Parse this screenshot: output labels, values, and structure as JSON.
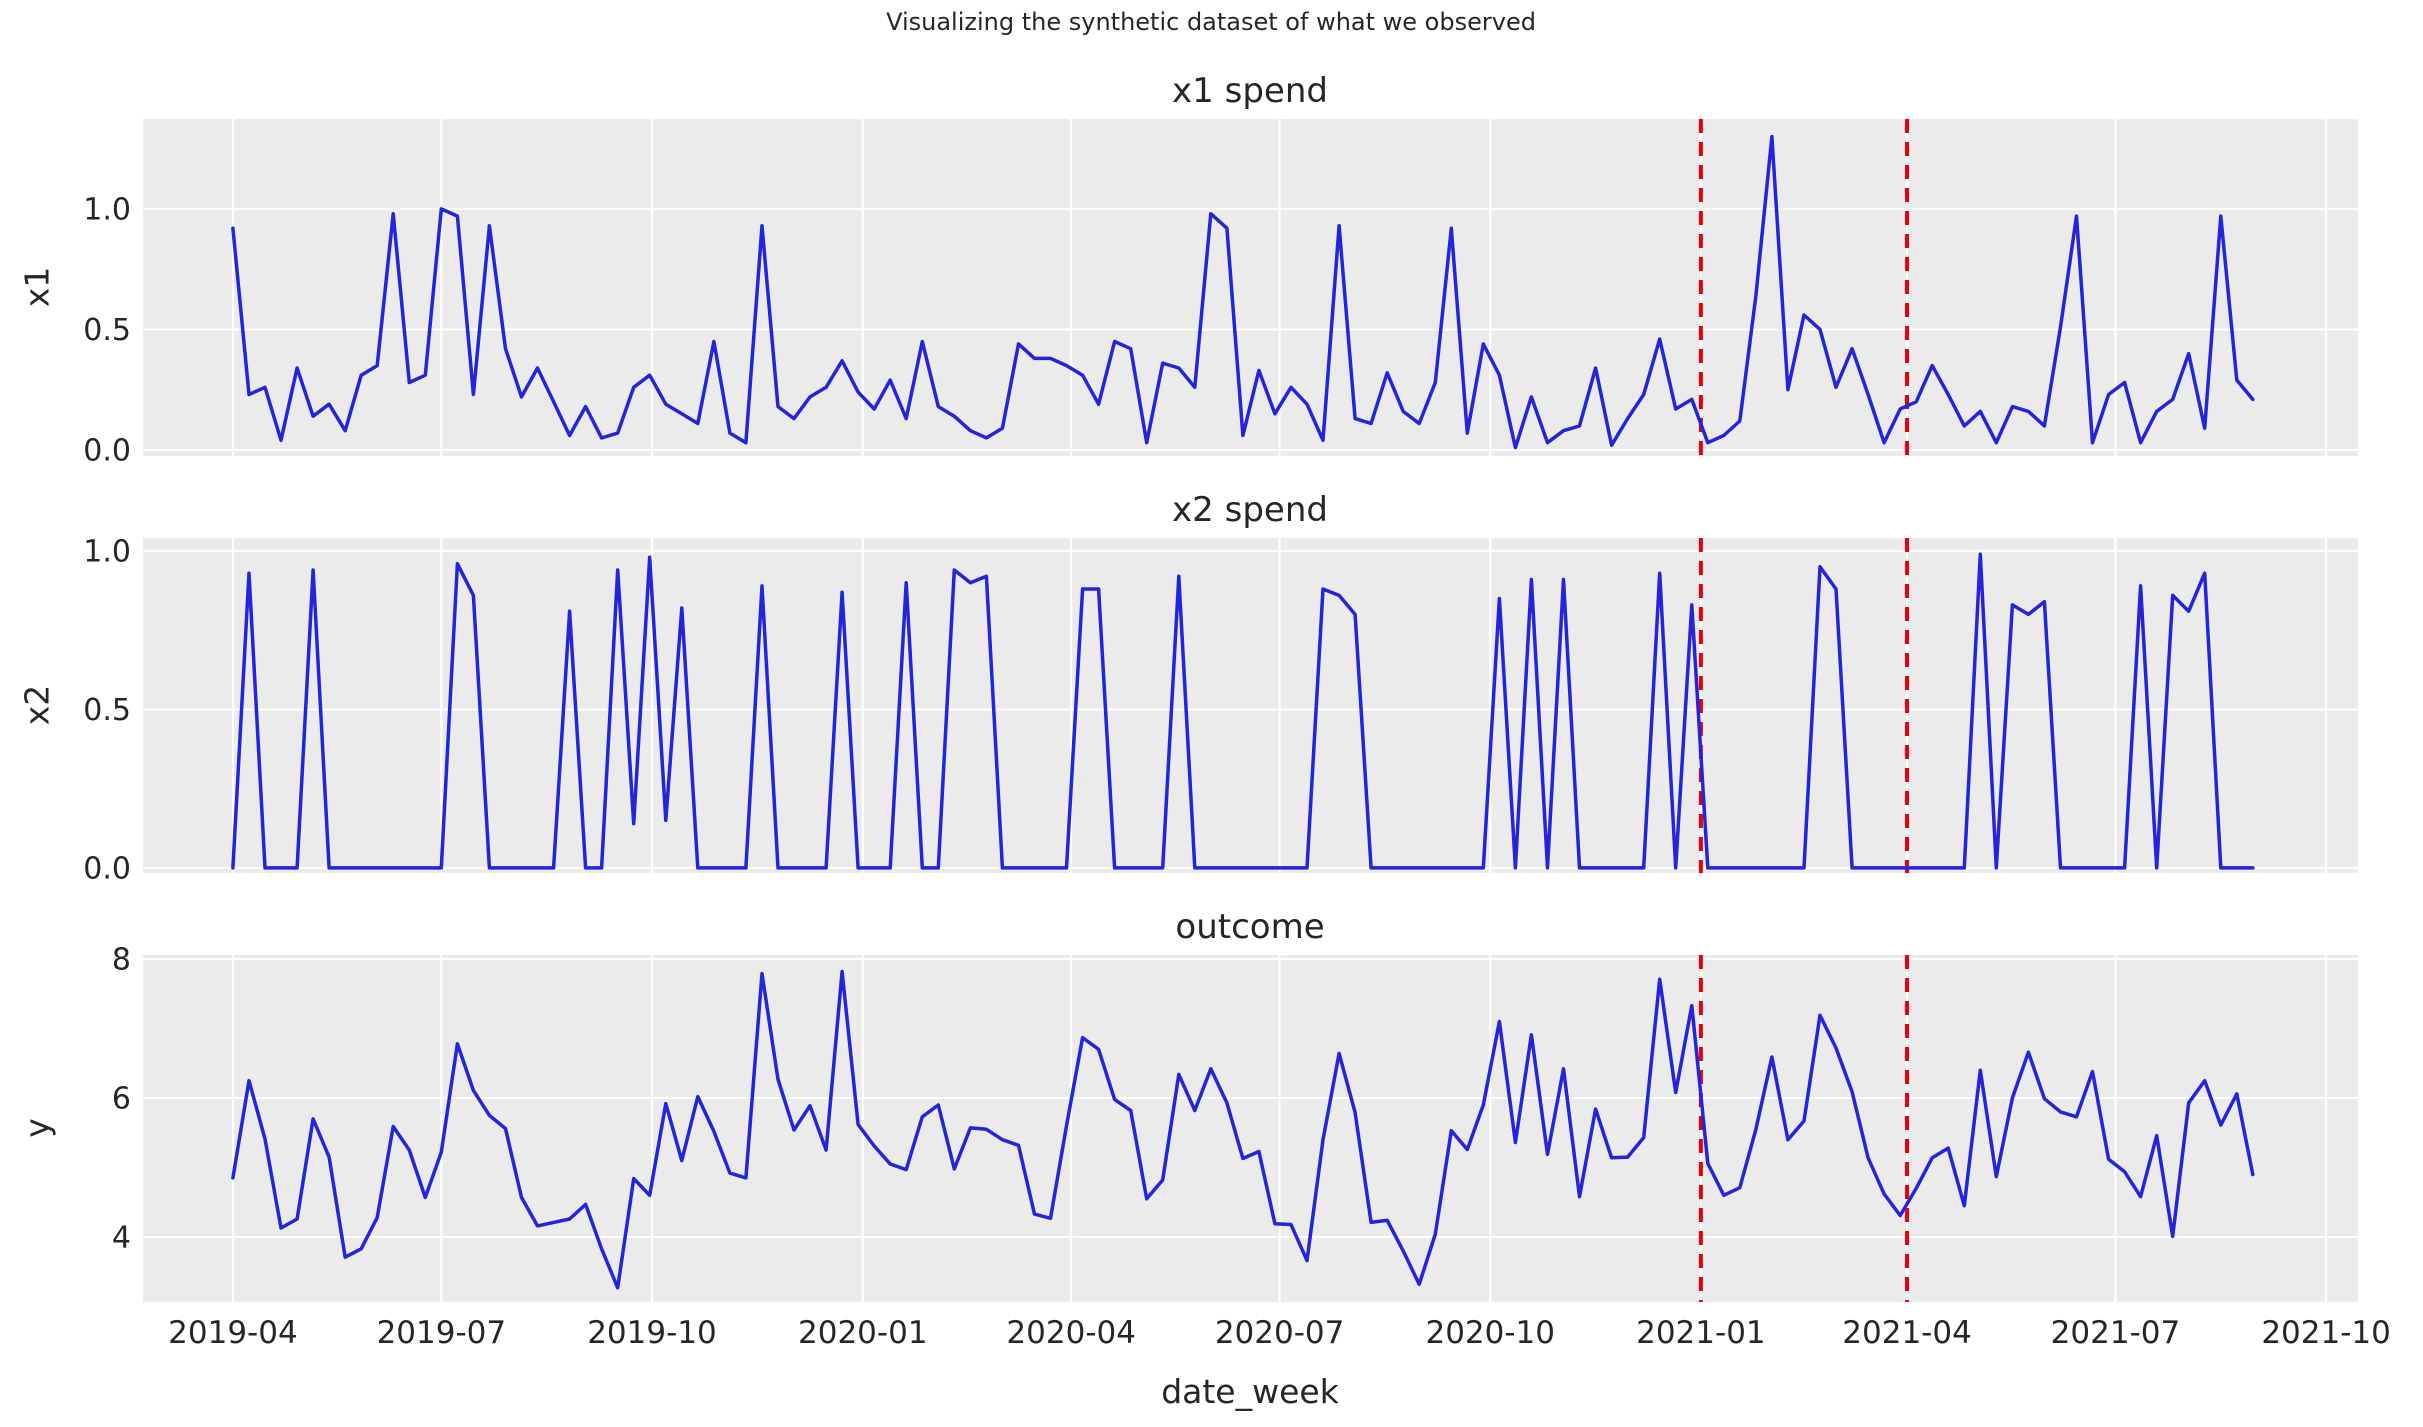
{
  "figure": {
    "suptitle": "Visualizing the synthetic dataset of what we observed",
    "background_color": "#ffffff",
    "plot_background_color": "#EBEBEB",
    "grid_color": "#ffffff",
    "text_color": "#262626",
    "series_color": "#2424DC",
    "vline_color": "#E8000B"
  },
  "x_axis": {
    "xlabel": "date_week",
    "start_date": "2019-04-01",
    "step_days": 7,
    "n_points": 127,
    "tick_labels": [
      "2019-04",
      "2019-07",
      "2019-10",
      "2020-01",
      "2020-04",
      "2020-07",
      "2020-10",
      "2021-01",
      "2021-04",
      "2021-07",
      "2021-10"
    ],
    "tick_weeks": [
      0,
      13.0,
      26.14,
      39.29,
      52.29,
      65.29,
      78.43,
      91.57,
      104.43,
      117.43,
      130.57
    ],
    "xlim_weeks": [
      -5.61,
      132.56
    ]
  },
  "annotations": {
    "vline_weeks": [
      91.57,
      104.43
    ],
    "vline_dates": [
      "2021-01-01",
      "2021-04-01"
    ],
    "style": "dashed"
  },
  "chart_data": [
    {
      "type": "line",
      "title": "x1 spend",
      "ylabel": "x1",
      "ytick_labels": [
        "0.0",
        "0.5",
        "1.0"
      ],
      "yticks": [
        0.0,
        0.5,
        1.0
      ],
      "ylim": [
        -0.025,
        1.373
      ],
      "grid": true,
      "values": [
        0.92,
        0.23,
        0.26,
        0.04,
        0.34,
        0.14,
        0.19,
        0.08,
        0.31,
        0.35,
        0.98,
        0.28,
        0.31,
        1.0,
        0.97,
        0.23,
        0.93,
        0.42,
        0.22,
        0.34,
        0.2,
        0.06,
        0.18,
        0.05,
        0.07,
        0.26,
        0.31,
        0.19,
        0.15,
        0.11,
        0.45,
        0.07,
        0.03,
        0.93,
        0.18,
        0.13,
        0.22,
        0.26,
        0.37,
        0.24,
        0.17,
        0.29,
        0.13,
        0.45,
        0.18,
        0.14,
        0.08,
        0.05,
        0.09,
        0.44,
        0.38,
        0.38,
        0.35,
        0.31,
        0.19,
        0.45,
        0.42,
        0.03,
        0.36,
        0.34,
        0.26,
        0.98,
        0.92,
        0.06,
        0.33,
        0.15,
        0.26,
        0.19,
        0.04,
        0.93,
        0.13,
        0.11,
        0.32,
        0.16,
        0.11,
        0.28,
        0.92,
        0.07,
        0.44,
        0.31,
        0.01,
        0.22,
        0.03,
        0.08,
        0.1,
        0.34,
        0.02,
        0.13,
        0.23,
        0.46,
        0.17,
        0.21,
        0.03,
        0.06,
        0.12,
        0.64,
        1.3,
        0.25,
        0.56,
        0.5,
        0.26,
        0.42,
        0.23,
        0.03,
        0.17,
        0.2,
        0.35,
        0.23,
        0.1,
        0.16,
        0.03,
        0.18,
        0.16,
        0.1,
        0.51,
        0.97,
        0.03,
        0.23,
        0.28,
        0.03,
        0.16,
        0.21,
        0.4,
        0.09,
        0.97,
        0.29,
        0.21
      ]
    },
    {
      "type": "line",
      "title": "x2 spend",
      "ylabel": "x2",
      "ytick_labels": [
        "0.0",
        "0.5",
        "1.0"
      ],
      "yticks": [
        0.0,
        0.5,
        1.0
      ],
      "ylim": [
        -0.016,
        1.041
      ],
      "grid": true,
      "values": [
        0,
        0.93,
        0,
        0,
        0,
        0.94,
        0,
        0,
        0,
        0,
        0,
        0,
        0,
        0,
        0.96,
        0.86,
        0,
        0,
        0,
        0,
        0,
        0.81,
        0,
        0,
        0.94,
        0.14,
        0.98,
        0.15,
        0.82,
        0,
        0,
        0,
        0,
        0.89,
        0,
        0,
        0,
        0,
        0.87,
        0,
        0,
        0,
        0.9,
        0,
        0,
        0.94,
        0.9,
        0.92,
        0,
        0,
        0,
        0,
        0,
        0.88,
        0.88,
        0,
        0,
        0,
        0,
        0.92,
        0,
        0,
        0,
        0,
        0,
        0,
        0,
        0,
        0.88,
        0.86,
        0.8,
        0,
        0,
        0,
        0,
        0,
        0,
        0,
        0,
        0.85,
        0,
        0.91,
        0,
        0.91,
        0,
        0,
        0,
        0,
        0,
        0.93,
        0,
        0.83,
        0,
        0,
        0,
        0,
        0,
        0,
        0,
        0.95,
        0.88,
        0,
        0,
        0,
        0,
        0,
        0,
        0,
        0,
        0.99,
        0,
        0.83,
        0.8,
        0.84,
        0,
        0,
        0,
        0,
        0,
        0.89,
        0,
        0.86,
        0.81,
        0.93,
        0,
        0,
        0
      ]
    },
    {
      "type": "line",
      "title": "outcome",
      "ylabel": "y",
      "ytick_labels": [
        "4",
        "6",
        "8"
      ],
      "yticks": [
        4,
        6,
        8
      ],
      "ylim": [
        3.065,
        8.058
      ],
      "grid": true,
      "values": [
        4.85,
        6.25,
        5.41,
        4.13,
        4.26,
        5.7,
        5.15,
        3.71,
        3.83,
        4.28,
        5.59,
        5.25,
        4.57,
        5.22,
        6.78,
        6.11,
        5.75,
        5.56,
        4.57,
        4.16,
        4.21,
        4.26,
        4.47,
        3.83,
        3.27,
        4.84,
        4.6,
        5.92,
        5.1,
        6.02,
        5.52,
        4.92,
        4.85,
        7.79,
        6.27,
        5.54,
        5.89,
        5.25,
        7.82,
        5.62,
        5.31,
        5.05,
        4.97,
        5.73,
        5.9,
        4.98,
        5.57,
        5.55,
        5.4,
        5.32,
        4.33,
        4.27,
        5.6,
        6.87,
        6.7,
        5.98,
        5.82,
        4.55,
        4.82,
        6.34,
        5.82,
        6.42,
        5.93,
        5.13,
        5.23,
        4.19,
        4.18,
        3.66,
        5.4,
        6.64,
        5.79,
        4.21,
        4.24,
        3.8,
        3.32,
        4.04,
        5.53,
        5.26,
        5.9,
        7.1,
        5.36,
        6.91,
        5.19,
        6.42,
        4.58,
        5.84,
        5.14,
        5.15,
        5.43,
        7.71,
        6.08,
        7.33,
        5.06,
        4.6,
        4.71,
        5.55,
        6.59,
        5.4,
        5.67,
        7.19,
        6.72,
        6.09,
        5.14,
        4.62,
        4.31,
        4.7,
        5.14,
        5.28,
        4.45,
        6.4,
        4.87,
        6.0,
        6.66,
        5.99,
        5.8,
        5.73,
        6.38,
        5.12,
        4.94,
        4.58,
        5.46,
        4.01,
        5.93,
        6.25,
        5.61,
        6.06,
        4.9
      ]
    }
  ]
}
